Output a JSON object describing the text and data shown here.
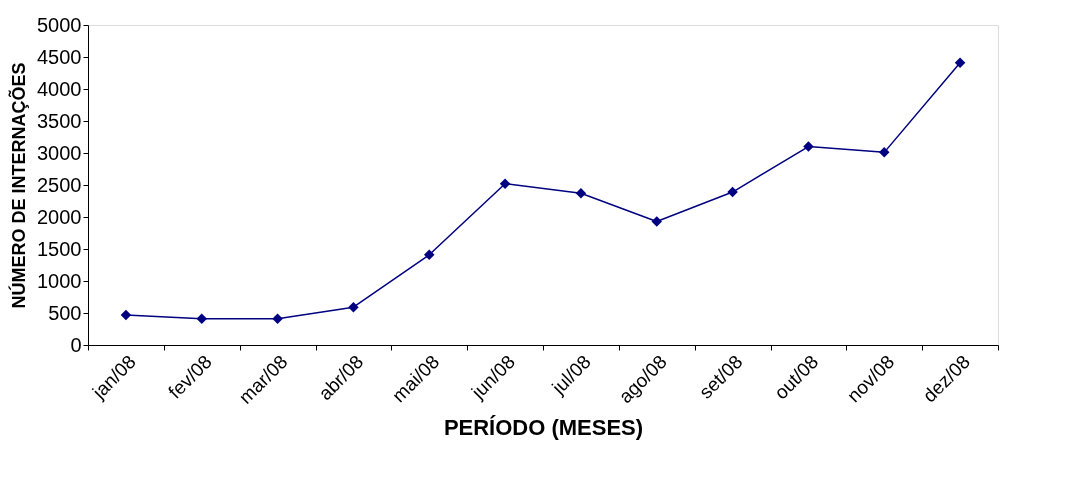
{
  "chart_data": {
    "type": "line",
    "xlabel": "PERÍODO (MESES)",
    "ylabel": "NÚMERO DE INTERNAÇÕES",
    "categories": [
      "jan/08",
      "fev/08",
      "mar/08",
      "abr/08",
      "mai/08",
      "jun/08",
      "jul/08",
      "ago/08",
      "set/08",
      "out/08",
      "nov/08",
      "dez/08"
    ],
    "series": [
      {
        "color": "#000080",
        "values": [
          470,
          410,
          410,
          590,
          1410,
          2520,
          2370,
          1930,
          2390,
          3100,
          3010,
          4410
        ]
      }
    ],
    "ylim": [
      0,
      5000
    ],
    "yticks": [
      0,
      500,
      1000,
      1500,
      2000,
      2500,
      3000,
      3500,
      4000,
      4500,
      5000
    ],
    "grid": false,
    "legend": false,
    "marker": "diamond",
    "line_style": "solid"
  }
}
